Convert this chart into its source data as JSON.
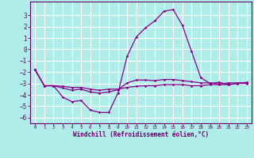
{
  "xlabel": "Windchill (Refroidissement éolien,°C)",
  "background_color": "#b0ece8",
  "grid_color": "#ffffff",
  "line_color": "#880088",
  "x": [
    0,
    1,
    2,
    3,
    4,
    5,
    6,
    7,
    8,
    9,
    10,
    11,
    12,
    13,
    14,
    15,
    16,
    17,
    18,
    19,
    20,
    21,
    22,
    23
  ],
  "line1": [
    -1.8,
    -3.2,
    -3.2,
    -4.2,
    -4.6,
    -4.5,
    -5.35,
    -5.55,
    -5.55,
    -3.85,
    -0.6,
    1.1,
    1.9,
    2.5,
    3.35,
    3.5,
    2.1,
    -0.2,
    -2.5,
    -3.0,
    -2.9,
    -3.1,
    -3.0,
    -2.9
  ],
  "line2": [
    -1.8,
    -3.2,
    -3.2,
    -3.4,
    -3.6,
    -3.5,
    -3.75,
    -3.85,
    -3.75,
    -3.55,
    -2.95,
    -2.7,
    -2.7,
    -2.75,
    -2.65,
    -2.65,
    -2.75,
    -2.85,
    -2.95,
    -2.95,
    -3.05,
    -2.95,
    -2.95,
    -2.95
  ],
  "line3": [
    -1.8,
    -3.2,
    -3.2,
    -3.25,
    -3.35,
    -3.35,
    -3.5,
    -3.6,
    -3.5,
    -3.5,
    -3.35,
    -3.25,
    -3.2,
    -3.2,
    -3.1,
    -3.1,
    -3.1,
    -3.2,
    -3.2,
    -3.1,
    -3.1,
    -3.1,
    -3.0,
    -3.0
  ],
  "ylim": [
    -6.5,
    4.2
  ],
  "yticks": [
    -6,
    -5,
    -4,
    -3,
    -2,
    -1,
    0,
    1,
    2,
    3
  ],
  "xlim": [
    -0.5,
    23.5
  ],
  "xticks": [
    0,
    1,
    2,
    3,
    4,
    5,
    6,
    7,
    8,
    9,
    10,
    11,
    12,
    13,
    14,
    15,
    16,
    17,
    18,
    19,
    20,
    21,
    22,
    23
  ]
}
